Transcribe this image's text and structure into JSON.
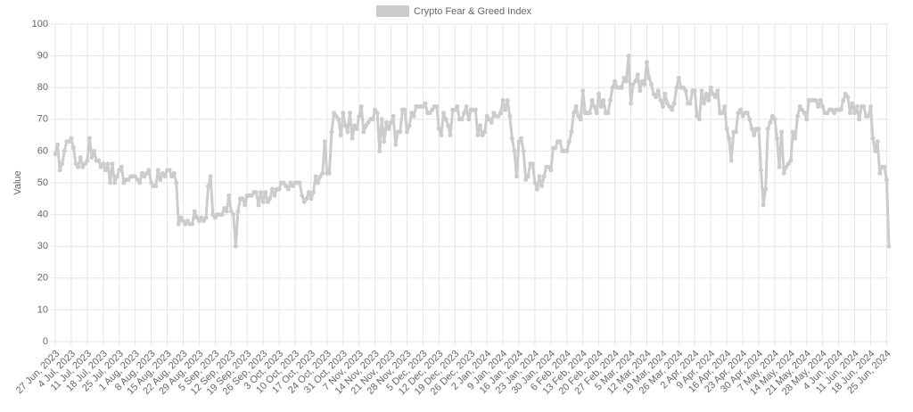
{
  "chart_data": {
    "type": "line",
    "y_label": "Value",
    "ylim": [
      0,
      100
    ],
    "yticks": [
      0,
      10,
      20,
      30,
      40,
      50,
      60,
      70,
      80,
      90,
      100
    ],
    "grid": true,
    "legend": "top",
    "categories": [
      "27 Jun, 2023",
      null,
      null,
      null,
      null,
      null,
      null,
      "4 Jul, 2023",
      null,
      null,
      null,
      null,
      null,
      null,
      "11 Jul, 2023",
      null,
      null,
      null,
      null,
      null,
      null,
      "18 Jul, 2023",
      null,
      null,
      null,
      null,
      null,
      null,
      "25 Jul, 2023",
      null,
      null,
      null,
      null,
      null,
      null,
      "1 Aug, 2023",
      null,
      null,
      null,
      null,
      null,
      null,
      "8 Aug, 2023",
      null,
      null,
      null,
      null,
      null,
      null,
      "15 Aug, 2023",
      null,
      null,
      null,
      null,
      null,
      null,
      "22 Aug, 2023",
      null,
      null,
      null,
      null,
      null,
      null,
      "29 Aug, 2023",
      null,
      null,
      null,
      null,
      null,
      null,
      "5 Sep, 2023",
      null,
      null,
      null,
      null,
      null,
      null,
      "12 Sep, 2023",
      null,
      null,
      null,
      null,
      null,
      null,
      "19 Sep, 2023",
      null,
      null,
      null,
      null,
      null,
      null,
      "26 Sep, 2023",
      null,
      null,
      null,
      null,
      null,
      null,
      "3 Oct, 2023",
      null,
      null,
      null,
      null,
      null,
      null,
      "10 Oct, 2023",
      null,
      null,
      null,
      null,
      null,
      null,
      "17 Oct, 2023",
      null,
      null,
      null,
      null,
      null,
      null,
      "24 Oct, 2023",
      null,
      null,
      null,
      null,
      null,
      null,
      "31 Oct, 2023",
      null,
      null,
      null,
      null,
      null,
      null,
      "7 Nov, 2023",
      null,
      null,
      null,
      null,
      null,
      null,
      "14 Nov, 2023",
      null,
      null,
      null,
      null,
      null,
      null,
      "21 Nov, 2023",
      null,
      null,
      null,
      null,
      null,
      null,
      "28 Nov, 2023",
      null,
      null,
      null,
      null,
      null,
      null,
      "5 Dec, 2023",
      null,
      null,
      null,
      null,
      null,
      null,
      "12 Dec, 2023",
      null,
      null,
      null,
      null,
      null,
      null,
      "19 Dec, 2023",
      null,
      null,
      null,
      null,
      null,
      null,
      "26 Dec, 2023",
      null,
      null,
      null,
      null,
      null,
      null,
      "2 Jan, 2024",
      null,
      null,
      null,
      null,
      null,
      null,
      "9 Jan, 2024",
      null,
      null,
      null,
      null,
      null,
      null,
      "16 Jan, 2024",
      null,
      null,
      null,
      null,
      null,
      null,
      "23 Jan, 2024",
      null,
      null,
      null,
      null,
      null,
      null,
      "30 Jan, 2024",
      null,
      null,
      null,
      null,
      null,
      null,
      "6 Feb, 2024",
      null,
      null,
      null,
      null,
      null,
      null,
      "13 Feb, 2024",
      null,
      null,
      null,
      null,
      null,
      null,
      "20 Feb, 2024",
      null,
      null,
      null,
      null,
      null,
      null,
      "27 Feb, 2024",
      null,
      null,
      null,
      null,
      null,
      null,
      "5 Mar, 2024",
      null,
      null,
      null,
      null,
      null,
      null,
      "12 Mar, 2024",
      null,
      null,
      null,
      null,
      null,
      null,
      "19 Mar, 2024",
      null,
      null,
      null,
      null,
      null,
      null,
      "26 Mar, 2024",
      null,
      null,
      null,
      null,
      null,
      null,
      "2 Apr, 2024",
      null,
      null,
      null,
      null,
      null,
      null,
      "9 Apr, 2024",
      null,
      null,
      null,
      null,
      null,
      null,
      "16 Apr, 2024",
      null,
      null,
      null,
      null,
      null,
      null,
      "23 Apr, 2024",
      null,
      null,
      null,
      null,
      null,
      null,
      "30 Apr, 2024",
      null,
      null,
      null,
      null,
      null,
      null,
      "7 May, 2024",
      null,
      null,
      null,
      null,
      null,
      null,
      "14 May, 2024",
      null,
      null,
      null,
      null,
      null,
      null,
      "21 May, 2024",
      null,
      null,
      null,
      null,
      null,
      null,
      "28 May, 2024",
      null,
      null,
      null,
      null,
      null,
      null,
      "4 Jun, 2024",
      null,
      null,
      null,
      null,
      null,
      null,
      "11 Jun, 2024",
      null,
      null,
      null,
      null,
      null,
      null,
      "18 Jun, 2024",
      null,
      null,
      null,
      null,
      null,
      null,
      "25 Jun, 2024",
      null
    ],
    "series": [
      {
        "name": "Crypto Fear & Greed Index",
        "color": "#cccccc",
        "values": [
          59,
          62,
          54,
          56,
          60,
          63,
          63,
          64,
          61,
          56,
          55,
          58,
          55,
          56,
          57,
          64,
          58,
          60,
          57,
          57,
          55,
          56,
          54,
          56,
          50,
          56,
          50,
          52,
          54,
          55,
          50,
          51,
          51,
          52,
          52,
          52,
          51,
          50,
          53,
          52,
          53,
          54,
          50,
          49,
          49,
          54,
          51,
          53,
          52,
          54,
          54,
          52,
          53,
          50,
          37,
          39,
          38,
          37,
          38,
          37,
          37,
          41,
          39,
          38,
          39,
          38,
          39,
          49,
          52,
          40,
          39,
          40,
          40,
          40,
          42,
          41,
          46,
          41,
          40,
          30,
          41,
          45,
          45,
          43,
          46,
          46,
          46,
          47,
          47,
          43,
          47,
          44,
          47,
          44,
          45,
          48,
          46,
          48,
          48,
          50,
          50,
          49,
          48,
          50,
          49,
          50,
          50,
          50,
          46,
          44,
          45,
          47,
          45,
          47,
          52,
          50,
          52,
          53,
          63,
          53,
          53,
          66,
          72,
          71,
          70,
          65,
          72,
          68,
          66,
          72,
          64,
          68,
          67,
          71,
          74,
          66,
          68,
          69,
          70,
          70,
          73,
          72,
          60,
          70,
          63,
          69,
          67,
          69,
          71,
          62,
          66,
          66,
          73,
          73,
          66,
          68,
          72,
          71,
          74,
          74,
          74,
          74,
          75,
          72,
          72,
          73,
          74,
          74,
          67,
          65,
          72,
          70,
          68,
          65,
          73,
          73,
          74,
          70,
          70,
          72,
          74,
          70,
          73,
          73,
          73,
          65,
          68,
          65,
          66,
          71,
          70,
          69,
          72,
          71,
          71,
          72,
          76,
          73,
          76,
          71,
          64,
          60,
          52,
          63,
          64,
          60,
          51,
          52,
          56,
          56,
          50,
          48,
          52,
          49,
          52,
          55,
          55,
          54,
          61,
          61,
          63,
          63,
          60,
          60,
          60,
          63,
          66,
          72,
          74,
          71,
          70,
          79,
          72,
          72,
          72,
          76,
          74,
          72,
          78,
          74,
          76,
          72,
          72,
          76,
          80,
          82,
          80,
          80,
          80,
          83,
          82,
          90,
          75,
          81,
          82,
          84,
          79,
          82,
          81,
          88,
          83,
          81,
          78,
          77,
          79,
          76,
          74,
          78,
          75,
          74,
          73,
          75,
          80,
          83,
          80,
          80,
          79,
          75,
          75,
          79,
          79,
          71,
          70,
          79,
          75,
          78,
          76,
          80,
          78,
          77,
          79,
          72,
          72,
          74,
          67,
          64,
          57,
          66,
          66,
          72,
          73,
          71,
          72,
          72,
          70,
          67,
          65,
          67,
          67,
          54,
          43,
          48,
          67,
          69,
          71,
          70,
          64,
          55,
          66,
          53,
          55,
          56,
          57,
          66,
          64,
          71,
          74,
          73,
          72,
          70,
          76,
          76,
          76,
          76,
          74,
          76,
          74,
          72,
          72,
          73,
          73,
          72,
          73,
          73,
          73,
          76,
          78,
          77,
          72,
          75,
          72,
          74,
          70,
          74,
          74,
          71,
          71,
          74,
          64,
          60,
          63,
          53,
          55,
          55,
          51,
          30
        ]
      }
    ]
  }
}
